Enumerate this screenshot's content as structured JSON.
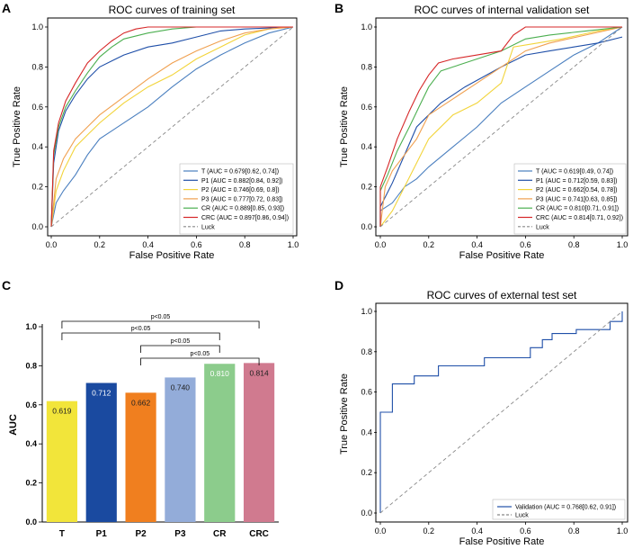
{
  "panels": [
    {
      "letter": "A",
      "title": "ROC curves of training set",
      "xlabel": "False Positive Rate",
      "ylabel": "True Positive Rate",
      "ticks": [
        "0.0",
        "0.2",
        "0.4",
        "0.6",
        "0.8",
        "1.0"
      ],
      "legend": [
        {
          "label": "T (AUC = 0.679[0.62, 0.74])",
          "color": "#4a7fbf"
        },
        {
          "label": "P1 (AUC = 0.882[0.84, 0.92])",
          "color": "#1f4fa8"
        },
        {
          "label": "P2 (AUC = 0.746[0.69, 0.8])",
          "color": "#f2d43a"
        },
        {
          "label": "P3 (AUC = 0.777[0.72, 0.83])",
          "color": "#f0a050"
        },
        {
          "label": "CR (AUC = 0.889[0.85, 0.93])",
          "color": "#4caf50"
        },
        {
          "label": "CRC (AUC = 0.897[0.86, 0.94])",
          "color": "#d62728"
        },
        {
          "label": "Luck",
          "color": "#888888"
        }
      ]
    },
    {
      "letter": "B",
      "title": "ROC curves of internal validation set",
      "xlabel": "False Positive Rate",
      "ylabel": "True Positive Rate",
      "ticks": [
        "0.0",
        "0.2",
        "0.4",
        "0.6",
        "0.8",
        "1.0"
      ],
      "legend": [
        {
          "label": "T (AUC = 0.619[0.49, 0.74])",
          "color": "#4a7fbf"
        },
        {
          "label": "P1 (AUC = 0.712[0.59, 0.83])",
          "color": "#1f4fa8"
        },
        {
          "label": "P2 (AUC = 0.662[0.54, 0.78])",
          "color": "#f2d43a"
        },
        {
          "label": "P3 (AUC = 0.741[0.63, 0.85])",
          "color": "#f0a050"
        },
        {
          "label": "CR (AUC = 0.810[0.71, 0.91])",
          "color": "#4caf50"
        },
        {
          "label": "CRC (AUC = 0.814[0.71, 0.92])",
          "color": "#d62728"
        },
        {
          "label": "Luck",
          "color": "#888888"
        }
      ]
    },
    {
      "letter": "C",
      "ylabel": "AUC",
      "yticks": [
        "0.0",
        "0.2",
        "0.4",
        "0.6",
        "0.8",
        "1.0"
      ]
    },
    {
      "letter": "D",
      "title": "ROC curves of external test set",
      "xlabel": "False Positive Rate",
      "ylabel": "True Positive Rate",
      "ticks": [
        "0.0",
        "0.2",
        "0.4",
        "0.6",
        "0.8",
        "1.0"
      ],
      "legend": [
        {
          "label": "Validation (AUC = 0.768[0.62, 0.91])",
          "color": "#1f4fa8"
        },
        {
          "label": "Luck",
          "color": "#888888"
        }
      ]
    }
  ],
  "chart_data": [
    {
      "type": "line",
      "title": "ROC curves of training set",
      "xlabel": "False Positive Rate",
      "ylabel": "True Positive Rate",
      "xlim": [
        0,
        1
      ],
      "ylim": [
        0,
        1
      ],
      "series": [
        {
          "name": "T",
          "color": "#4a7fbf",
          "points": [
            [
              0,
              0
            ],
            [
              0.02,
              0.12
            ],
            [
              0.05,
              0.18
            ],
            [
              0.1,
              0.26
            ],
            [
              0.15,
              0.36
            ],
            [
              0.2,
              0.44
            ],
            [
              0.3,
              0.52
            ],
            [
              0.4,
              0.6
            ],
            [
              0.5,
              0.7
            ],
            [
              0.6,
              0.79
            ],
            [
              0.7,
              0.86
            ],
            [
              0.8,
              0.92
            ],
            [
              0.9,
              0.97
            ],
            [
              1,
              1
            ]
          ]
        },
        {
          "name": "P1",
          "color": "#1f4fa8",
          "points": [
            [
              0,
              0
            ],
            [
              0.01,
              0.32
            ],
            [
              0.03,
              0.48
            ],
            [
              0.06,
              0.58
            ],
            [
              0.1,
              0.66
            ],
            [
              0.15,
              0.74
            ],
            [
              0.2,
              0.8
            ],
            [
              0.3,
              0.86
            ],
            [
              0.4,
              0.9
            ],
            [
              0.5,
              0.92
            ],
            [
              0.6,
              0.95
            ],
            [
              0.7,
              0.98
            ],
            [
              0.8,
              0.99
            ],
            [
              1,
              1
            ]
          ]
        },
        {
          "name": "P2",
          "color": "#f2d43a",
          "points": [
            [
              0,
              0
            ],
            [
              0.02,
              0.18
            ],
            [
              0.05,
              0.28
            ],
            [
              0.1,
              0.4
            ],
            [
              0.15,
              0.46
            ],
            [
              0.2,
              0.52
            ],
            [
              0.3,
              0.62
            ],
            [
              0.4,
              0.7
            ],
            [
              0.5,
              0.76
            ],
            [
              0.6,
              0.84
            ],
            [
              0.7,
              0.9
            ],
            [
              0.8,
              0.96
            ],
            [
              0.9,
              0.99
            ],
            [
              1,
              1
            ]
          ]
        },
        {
          "name": "P3",
          "color": "#f0a050",
          "points": [
            [
              0,
              0
            ],
            [
              0.02,
              0.24
            ],
            [
              0.05,
              0.34
            ],
            [
              0.1,
              0.44
            ],
            [
              0.15,
              0.5
            ],
            [
              0.2,
              0.56
            ],
            [
              0.3,
              0.65
            ],
            [
              0.4,
              0.74
            ],
            [
              0.5,
              0.82
            ],
            [
              0.6,
              0.88
            ],
            [
              0.7,
              0.93
            ],
            [
              0.8,
              0.97
            ],
            [
              0.9,
              0.99
            ],
            [
              1,
              1
            ]
          ]
        },
        {
          "name": "CR",
          "color": "#4caf50",
          "points": [
            [
              0,
              0
            ],
            [
              0.01,
              0.36
            ],
            [
              0.03,
              0.5
            ],
            [
              0.06,
              0.6
            ],
            [
              0.1,
              0.68
            ],
            [
              0.15,
              0.77
            ],
            [
              0.2,
              0.85
            ],
            [
              0.25,
              0.9
            ],
            [
              0.3,
              0.94
            ],
            [
              0.4,
              0.97
            ],
            [
              0.5,
              0.99
            ],
            [
              0.6,
              1
            ],
            [
              1,
              1
            ]
          ]
        },
        {
          "name": "CRC",
          "color": "#d62728",
          "points": [
            [
              0,
              0
            ],
            [
              0.01,
              0.38
            ],
            [
              0.03,
              0.52
            ],
            [
              0.06,
              0.63
            ],
            [
              0.1,
              0.72
            ],
            [
              0.15,
              0.82
            ],
            [
              0.2,
              0.88
            ],
            [
              0.25,
              0.93
            ],
            [
              0.3,
              0.97
            ],
            [
              0.35,
              0.99
            ],
            [
              0.4,
              1
            ],
            [
              1,
              1
            ]
          ]
        },
        {
          "name": "Luck",
          "color": "#888888",
          "dashed": true,
          "points": [
            [
              0,
              0
            ],
            [
              1,
              1
            ]
          ]
        }
      ]
    },
    {
      "type": "line",
      "title": "ROC curves of internal validation set",
      "xlabel": "False Positive Rate",
      "ylabel": "True Positive Rate",
      "xlim": [
        0,
        1
      ],
      "ylim": [
        0,
        1
      ],
      "series": [
        {
          "name": "T",
          "color": "#4a7fbf",
          "points": [
            [
              0,
              0
            ],
            [
              0,
              0.08
            ],
            [
              0.05,
              0.12
            ],
            [
              0.1,
              0.2
            ],
            [
              0.15,
              0.24
            ],
            [
              0.2,
              0.3
            ],
            [
              0.3,
              0.4
            ],
            [
              0.4,
              0.5
            ],
            [
              0.5,
              0.62
            ],
            [
              0.6,
              0.7
            ],
            [
              0.7,
              0.78
            ],
            [
              0.8,
              0.86
            ],
            [
              0.9,
              0.92
            ],
            [
              1,
              1
            ]
          ]
        },
        {
          "name": "P1",
          "color": "#1f4fa8",
          "points": [
            [
              0,
              0
            ],
            [
              0,
              0.1
            ],
            [
              0.05,
              0.22
            ],
            [
              0.1,
              0.36
            ],
            [
              0.15,
              0.5
            ],
            [
              0.2,
              0.56
            ],
            [
              0.25,
              0.62
            ],
            [
              0.35,
              0.7
            ],
            [
              0.5,
              0.8
            ],
            [
              0.6,
              0.86
            ],
            [
              0.7,
              0.88
            ],
            [
              0.8,
              0.9
            ],
            [
              0.9,
              0.92
            ],
            [
              1,
              0.95
            ]
          ]
        },
        {
          "name": "P2",
          "color": "#f2d43a",
          "points": [
            [
              0,
              0
            ],
            [
              0.05,
              0.08
            ],
            [
              0.1,
              0.2
            ],
            [
              0.15,
              0.32
            ],
            [
              0.2,
              0.44
            ],
            [
              0.3,
              0.56
            ],
            [
              0.4,
              0.62
            ],
            [
              0.5,
              0.72
            ],
            [
              0.55,
              0.9
            ],
            [
              0.65,
              0.92
            ],
            [
              0.75,
              0.94
            ],
            [
              0.9,
              0.98
            ],
            [
              1,
              1
            ]
          ]
        },
        {
          "name": "P3",
          "color": "#f0a050",
          "points": [
            [
              0,
              0
            ],
            [
              0.02,
              0.2
            ],
            [
              0.05,
              0.28
            ],
            [
              0.1,
              0.36
            ],
            [
              0.15,
              0.44
            ],
            [
              0.2,
              0.56
            ],
            [
              0.3,
              0.64
            ],
            [
              0.4,
              0.72
            ],
            [
              0.5,
              0.8
            ],
            [
              0.6,
              0.88
            ],
            [
              0.7,
              0.92
            ],
            [
              0.85,
              0.96
            ],
            [
              1,
              1
            ]
          ]
        },
        {
          "name": "CR",
          "color": "#4caf50",
          "points": [
            [
              0,
              0
            ],
            [
              0,
              0.18
            ],
            [
              0.03,
              0.26
            ],
            [
              0.07,
              0.38
            ],
            [
              0.12,
              0.5
            ],
            [
              0.16,
              0.6
            ],
            [
              0.2,
              0.7
            ],
            [
              0.25,
              0.78
            ],
            [
              0.3,
              0.8
            ],
            [
              0.4,
              0.84
            ],
            [
              0.5,
              0.88
            ],
            [
              0.6,
              0.94
            ],
            [
              0.7,
              0.96
            ],
            [
              0.85,
              0.98
            ],
            [
              1,
              1
            ]
          ]
        },
        {
          "name": "CRC",
          "color": "#d62728",
          "points": [
            [
              0,
              0
            ],
            [
              0,
              0.2
            ],
            [
              0.03,
              0.3
            ],
            [
              0.07,
              0.44
            ],
            [
              0.12,
              0.58
            ],
            [
              0.16,
              0.68
            ],
            [
              0.2,
              0.76
            ],
            [
              0.24,
              0.82
            ],
            [
              0.3,
              0.84
            ],
            [
              0.4,
              0.86
            ],
            [
              0.5,
              0.88
            ],
            [
              0.55,
              0.96
            ],
            [
              0.6,
              1
            ],
            [
              1,
              1
            ]
          ]
        },
        {
          "name": "Luck",
          "color": "#888888",
          "dashed": true,
          "points": [
            [
              0,
              0
            ],
            [
              1,
              1
            ]
          ]
        }
      ]
    },
    {
      "type": "bar",
      "ylabel": "AUC",
      "ylim": [
        0,
        1
      ],
      "categories": [
        "T",
        "P1",
        "P2",
        "P3",
        "CR",
        "CRC"
      ],
      "values": [
        0.619,
        0.712,
        0.662,
        0.74,
        0.81,
        0.814
      ],
      "value_labels": [
        "0.619",
        "0.712",
        "0.662",
        "0.740",
        "0.810",
        "0.814"
      ],
      "colors": [
        "#f2e53a",
        "#1a4aa0",
        "#f07f1f",
        "#93acd9",
        "#8ccc8c",
        "#d07a8f"
      ],
      "label_colors": [
        "#222222",
        "#ffffff",
        "#222222",
        "#222222",
        "#ffffff",
        "#222222"
      ],
      "brackets": [
        {
          "from": "T",
          "to": "CRC",
          "label": "p<0.05"
        },
        {
          "from": "T",
          "to": "CR",
          "label": "p<0.05"
        },
        {
          "from": "P2",
          "to": "CR",
          "label": "p<0.05"
        },
        {
          "from": "P2",
          "to": "CRC",
          "label": "p<0.05"
        }
      ]
    },
    {
      "type": "line",
      "title": "ROC curves of external test set",
      "xlabel": "False Positive Rate",
      "ylabel": "True Positive Rate",
      "xlim": [
        0,
        1
      ],
      "ylim": [
        0,
        1
      ],
      "series": [
        {
          "name": "Validation",
          "color": "#1f4fa8",
          "step": true,
          "points": [
            [
              0,
              0
            ],
            [
              0,
              0.5
            ],
            [
              0.05,
              0.5
            ],
            [
              0.05,
              0.64
            ],
            [
              0.14,
              0.64
            ],
            [
              0.14,
              0.68
            ],
            [
              0.24,
              0.68
            ],
            [
              0.24,
              0.73
            ],
            [
              0.43,
              0.73
            ],
            [
              0.43,
              0.77
            ],
            [
              0.62,
              0.77
            ],
            [
              0.62,
              0.82
            ],
            [
              0.67,
              0.82
            ],
            [
              0.67,
              0.86
            ],
            [
              0.71,
              0.86
            ],
            [
              0.71,
              0.89
            ],
            [
              0.81,
              0.89
            ],
            [
              0.81,
              0.91
            ],
            [
              0.95,
              0.91
            ],
            [
              0.95,
              0.95
            ],
            [
              1,
              0.95
            ],
            [
              1,
              1
            ]
          ]
        },
        {
          "name": "Luck",
          "color": "#888888",
          "dashed": true,
          "points": [
            [
              0,
              0
            ],
            [
              1,
              1
            ]
          ]
        }
      ]
    }
  ]
}
